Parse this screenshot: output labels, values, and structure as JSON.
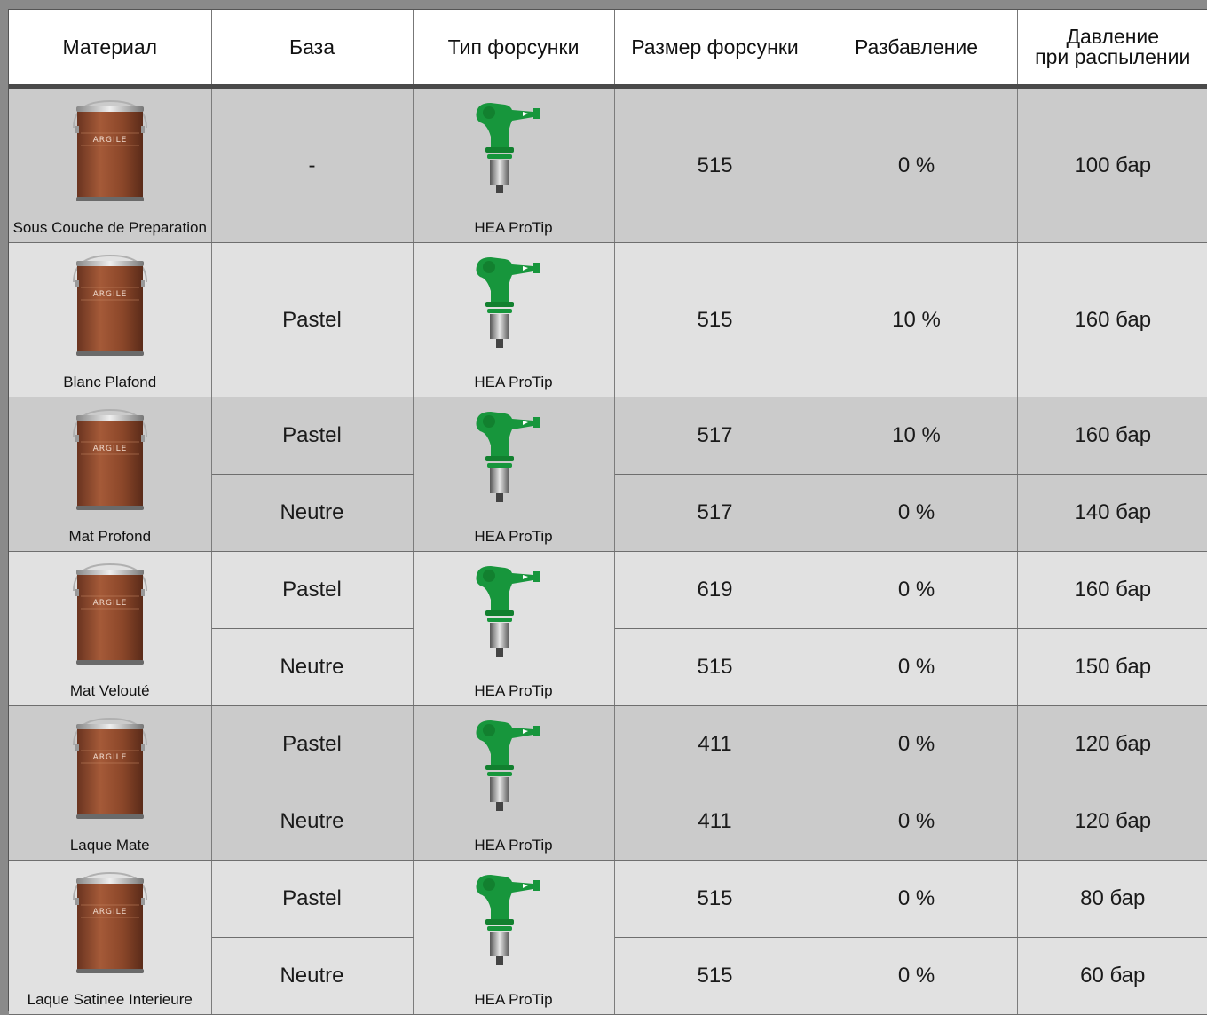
{
  "headers": {
    "material": "Материал",
    "base": "База",
    "tip_type": "Тип форсунки",
    "tip_size": "Размер форсунки",
    "dilution": "Разбавление",
    "pressure_line1": "Давление",
    "pressure_line2": "при распылении"
  },
  "can_brand": "ARGILE",
  "tip_label": "HEA ProTip",
  "colors": {
    "tip_green": "#17963c",
    "can_brown": "#8a4a2e",
    "row_dark": "#cbcbcb",
    "row_light": "#e1e1e1"
  },
  "rows": [
    {
      "material": "Sous Couche de Preparation",
      "variants": [
        {
          "base": "-",
          "size": "515",
          "dilution": "0 %",
          "pressure": "100 бар"
        }
      ]
    },
    {
      "material": "Blanc Plafond",
      "variants": [
        {
          "base": "Pastel",
          "size": "515",
          "dilution": "10 %",
          "pressure": "160 бар"
        }
      ]
    },
    {
      "material": "Mat Profond",
      "variants": [
        {
          "base": "Pastel",
          "size": "517",
          "dilution": "10 %",
          "pressure": "160 бар"
        },
        {
          "base": "Neutre",
          "size": "517",
          "dilution": "0 %",
          "pressure": "140 бар"
        }
      ]
    },
    {
      "material": "Mat Velouté",
      "variants": [
        {
          "base": "Pastel",
          "size": "619",
          "dilution": "0 %",
          "pressure": "160 бар"
        },
        {
          "base": "Neutre",
          "size": "515",
          "dilution": "0 %",
          "pressure": "150 бар"
        }
      ]
    },
    {
      "material": "Laque Mate",
      "variants": [
        {
          "base": "Pastel",
          "size": "411",
          "dilution": "0 %",
          "pressure": "120 бар"
        },
        {
          "base": "Neutre",
          "size": "411",
          "dilution": "0 %",
          "pressure": "120 бар"
        }
      ]
    },
    {
      "material": "Laque Satinee Interieure",
      "variants": [
        {
          "base": "Pastel",
          "size": "515",
          "dilution": "0 %",
          "pressure": "80 бар"
        },
        {
          "base": "Neutre",
          "size": "515",
          "dilution": "0 %",
          "pressure": "60 бар"
        }
      ]
    }
  ]
}
